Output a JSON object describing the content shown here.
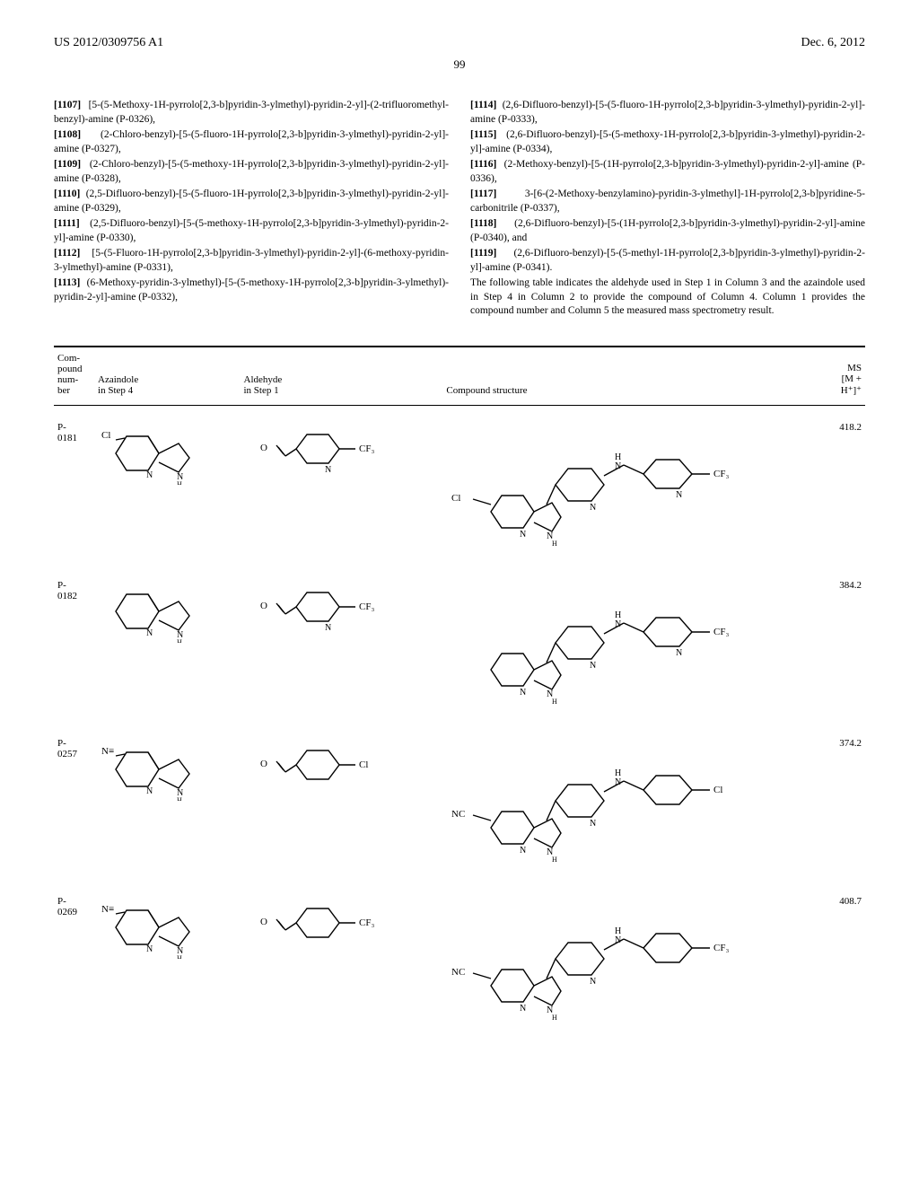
{
  "header": {
    "left": "US 2012/0309756 A1",
    "right": "Dec. 6, 2012",
    "page": "99"
  },
  "left_entries": [
    {
      "num": "[1107]",
      "text": "[5-(5-Methoxy-1H-pyrrolo[2,3-b]pyridin-3-ylmethyl)-pyridin-2-yl]-(2-trifluoromethyl-benzyl)-amine (P-0326),"
    },
    {
      "num": "[1108]",
      "text": "(2-Chloro-benzyl)-[5-(5-fluoro-1H-pyrrolo[2,3-b]pyridin-3-ylmethyl)-pyridin-2-yl]-amine (P-0327),"
    },
    {
      "num": "[1109]",
      "text": "(2-Chloro-benzyl)-[5-(5-methoxy-1H-pyrrolo[2,3-b]pyridin-3-ylmethyl)-pyridin-2-yl]-amine (P-0328),"
    },
    {
      "num": "[1110]",
      "text": "(2,5-Difluoro-benzyl)-[5-(5-fluoro-1H-pyrrolo[2,3-b]pyridin-3-ylmethyl)-pyridin-2-yl]-amine (P-0329),"
    },
    {
      "num": "[1111]",
      "text": "(2,5-Difluoro-benzyl)-[5-(5-methoxy-1H-pyrrolo[2,3-b]pyridin-3-ylmethyl)-pyridin-2-yl]-amine (P-0330),"
    },
    {
      "num": "[1112]",
      "text": "[5-(5-Fluoro-1H-pyrrolo[2,3-b]pyridin-3-ylmethyl)-pyridin-2-yl]-(6-methoxy-pyridin-3-ylmethyl)-amine (P-0331),"
    },
    {
      "num": "[1113]",
      "text": "(6-Methoxy-pyridin-3-ylmethyl)-[5-(5-methoxy-1H-pyrrolo[2,3-b]pyridin-3-ylmethyl)-pyridin-2-yl]-amine (P-0332),"
    }
  ],
  "right_entries": [
    {
      "num": "[1114]",
      "text": "(2,6-Difluoro-benzyl)-[5-(5-fluoro-1H-pyrrolo[2,3-b]pyridin-3-ylmethyl)-pyridin-2-yl]-amine (P-0333),"
    },
    {
      "num": "[1115]",
      "text": "(2,6-Difluoro-benzyl)-[5-(5-methoxy-1H-pyrrolo[2,3-b]pyridin-3-ylmethyl)-pyridin-2-yl]-amine (P-0334),"
    },
    {
      "num": "[1116]",
      "text": "(2-Methoxy-benzyl)-[5-(1H-pyrrolo[2,3-b]pyridin-3-ylmethyl)-pyridin-2-yl]-amine (P-0336),"
    },
    {
      "num": "[1117]",
      "text": "3-[6-(2-Methoxy-benzylamino)-pyridin-3-ylmethyl]-1H-pyrrolo[2,3-b]pyridine-5-carbonitrile (P-0337),"
    },
    {
      "num": "[1118]",
      "text": "(2,6-Difluoro-benzyl)-[5-(1H-pyrrolo[2,3-b]pyridin-3-ylmethyl)-pyridin-2-yl]-amine (P-0340), and"
    },
    {
      "num": "[1119]",
      "text": "(2,6-Difluoro-benzyl)-[5-(5-methyl-1H-pyrrolo[2,3-b]pyridin-3-ylmethyl)-pyridin-2-yl]-amine (P-0341)."
    }
  ],
  "right_tail": "The following table indicates the aldehyde used in Step 1 in Column 3 and the azaindole used in Step 4 in Column 2 to provide the compound of Column 4. Column 1 provides the compound number and Column 5 the measured mass spectrometry result.",
  "table": {
    "headers": {
      "c1a": "Com-",
      "c1b": "pound",
      "c1c": "num-",
      "c1d": "ber",
      "c2a": "Azaindole",
      "c2b": "in Step 4",
      "c3a": "Aldehyde",
      "c3b": "in Step 1",
      "c4": "Compound structure",
      "c5a": "MS",
      "c5b": "[M +",
      "c5c": "H⁺]⁺"
    },
    "rows": [
      {
        "num": "P-0181",
        "ms": "418.2",
        "sub": "Cl",
        "ald_sub": "CF₃",
        "ald_pyr": true,
        "cs_left": "Cl",
        "cs_right": "CF₃",
        "cs_pyr": true
      },
      {
        "num": "P-0182",
        "ms": "384.2",
        "sub": "",
        "ald_sub": "CF₃",
        "ald_pyr": true,
        "cs_left": "",
        "cs_right": "CF₃",
        "cs_pyr": true
      },
      {
        "num": "P-0257",
        "ms": "374.2",
        "sub": "N≡",
        "ald_sub": "Cl",
        "ald_pyr": false,
        "cs_left": "NC",
        "cs_right": "Cl",
        "cs_pyr": false
      },
      {
        "num": "P-0269",
        "ms": "408.7",
        "sub": "N≡",
        "ald_sub": "CF₃",
        "ald_pyr": false,
        "cs_left": "NC",
        "cs_right": "CF₃",
        "cs_pyr": false
      }
    ]
  }
}
